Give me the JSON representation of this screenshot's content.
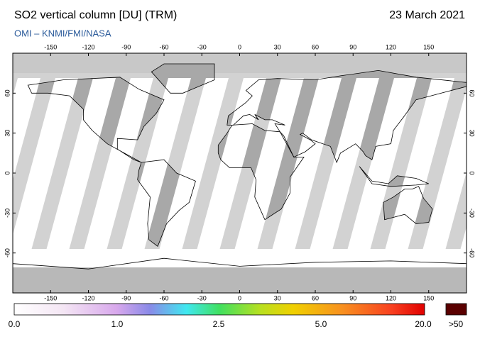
{
  "header": {
    "title": "SO2 vertical column [DU] (TRM)",
    "date": "23 March 2021",
    "subtitle": "OMI  –  KNMI/FMI/NASA"
  },
  "map": {
    "lon_ticks": [
      -150,
      -120,
      -90,
      -60,
      -30,
      0,
      30,
      60,
      90,
      120,
      150
    ],
    "lat_ticks": [
      60,
      30,
      0,
      -30,
      -60
    ]
  },
  "colorbar": {
    "labels": [
      "0.0",
      "1.0",
      "2.5",
      "5.0",
      "20.0",
      ">50"
    ]
  }
}
